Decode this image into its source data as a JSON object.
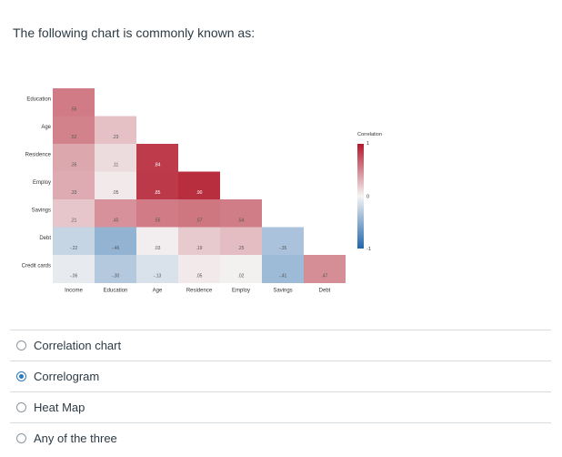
{
  "question": {
    "text": "The following chart is commonly known as:"
  },
  "chart_data": {
    "type": "heatmap",
    "row_labels": [
      "Education",
      "Age",
      "Residence",
      "Employ",
      "Savings",
      "Debt",
      "Credit cards"
    ],
    "col_labels": [
      "Income",
      "Education",
      "Age",
      "Residence",
      "Employ",
      "Savings",
      "Debt"
    ],
    "cells": [
      [
        0.55,
        null,
        null,
        null,
        null,
        null,
        null
      ],
      [
        0.52,
        0.23,
        null,
        null,
        null,
        null,
        null
      ],
      [
        0.35,
        0.11,
        0.84,
        null,
        null,
        null,
        null
      ],
      [
        0.33,
        0.05,
        0.85,
        0.9,
        null,
        null,
        null
      ],
      [
        0.21,
        0.45,
        0.55,
        0.57,
        0.54,
        null,
        null
      ],
      [
        -0.22,
        -0.46,
        0.03,
        0.19,
        0.25,
        -0.35,
        null
      ],
      [
        -0.06,
        -0.3,
        -0.13,
        0.05,
        0.02,
        -0.41,
        0.47
      ]
    ],
    "legend": {
      "title": "Correlation",
      "max_label": "1",
      "mid_label": "0",
      "min_label": "-1",
      "placement": "right"
    },
    "colors": {
      "positive": "#b2182b",
      "neutral": "#f4f4f4",
      "negative": "#2166ac"
    }
  },
  "answers": [
    {
      "label": "Correlation chart",
      "selected": false
    },
    {
      "label": "Correlogram",
      "selected": true
    },
    {
      "label": "Heat Map",
      "selected": false
    },
    {
      "label": "Any of the three",
      "selected": false
    }
  ]
}
